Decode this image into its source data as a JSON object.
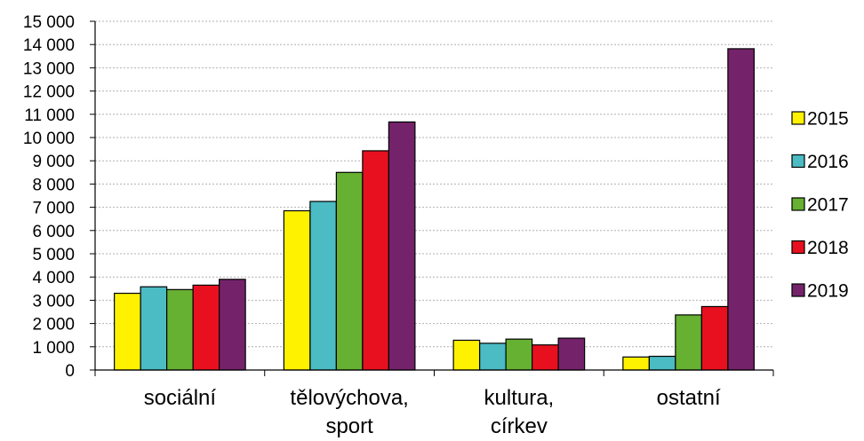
{
  "chart_data": {
    "type": "bar",
    "categories": [
      [
        "sociální"
      ],
      [
        "tělovýchova,",
        "sport"
      ],
      [
        "kultura,",
        "církev"
      ],
      [
        "ostatní"
      ]
    ],
    "series": [
      {
        "name": "2015",
        "color": "#FFF200",
        "values": [
          3300,
          6850,
          1280,
          560
        ]
      },
      {
        "name": "2016",
        "color": "#4BBBC4",
        "values": [
          3580,
          7250,
          1150,
          590
        ]
      },
      {
        "name": "2017",
        "color": "#66B032",
        "values": [
          3460,
          8500,
          1330,
          2370
        ]
      },
      {
        "name": "2018",
        "color": "#E8101E",
        "values": [
          3650,
          9430,
          1080,
          2730
        ]
      },
      {
        "name": "2019",
        "color": "#74236B",
        "values": [
          3900,
          10670,
          1370,
          13820
        ]
      }
    ],
    "y_ticks": [
      "0",
      "1 000",
      "2 000",
      "3 000",
      "4 000",
      "5 000",
      "6 000",
      "7 000",
      "8 000",
      "9 000",
      "10 000",
      "11 000",
      "12 000",
      "13 000",
      "14 000",
      "15 000"
    ],
    "ylim": [
      0,
      15000
    ],
    "grid": true,
    "legend_position": "right"
  }
}
